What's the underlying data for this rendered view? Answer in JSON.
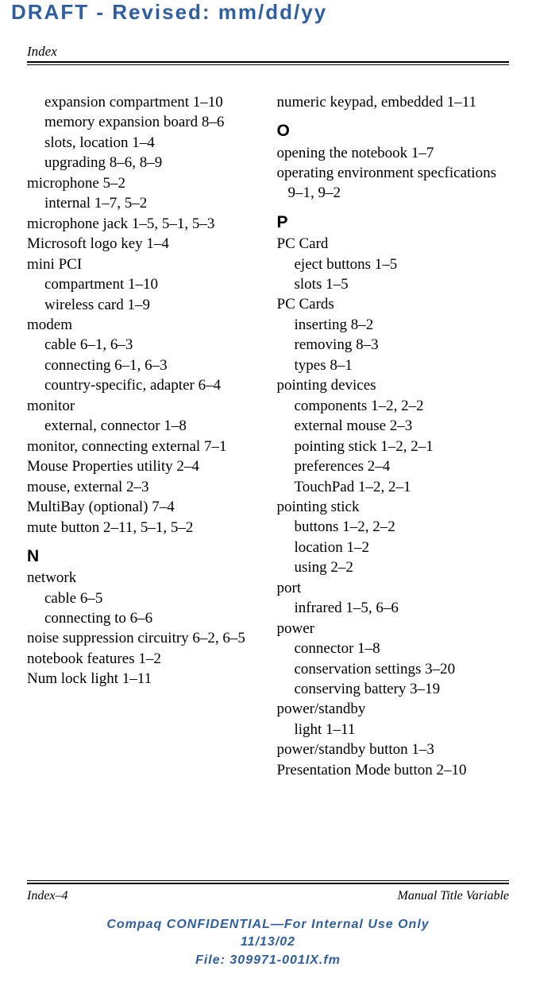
{
  "watermark": {
    "text": "DRAFT - Revised: mm/dd/yy",
    "color": "#2e5fa4"
  },
  "header": {
    "title": "Index"
  },
  "col_left": {
    "l1a": "expansion compartment 1–10",
    "l1b": "memory expansion board 8–6",
    "l1c": "slots, location 1–4",
    "l1d": "upgrading 8–6, 8–9",
    "l0a": "microphone 5–2",
    "l1e": "internal 1–7, 5–2",
    "l0b": "microphone jack 1–5, 5–1, 5–3",
    "l0c": "Microsoft logo key 1–4",
    "l0d": "mini PCI",
    "l1f": "compartment 1–10",
    "l1g": "wireless card 1–9",
    "l0e": "modem",
    "l1h": "cable 6–1, 6–3",
    "l1i": "connecting 6–1, 6–3",
    "l1j": "country-specific, adapter 6–4",
    "l0f": "monitor",
    "l1k": "external, connector 1–8",
    "l0g": "monitor, connecting external 7–1",
    "l0h": "Mouse Properties utility 2–4",
    "l0i": "mouse, external 2–3",
    "l0j": "MultiBay (optional) 7–4",
    "l0k": "mute button 2–11, 5–1, 5–2",
    "hdrN": "N",
    "l0l": "network",
    "l1l": "cable 6–5",
    "l1m": "connecting to 6–6",
    "l0m": "noise suppression circuitry 6–2, 6–5",
    "l0n": "notebook features 1–2",
    "l0o": "Num lock light 1–11"
  },
  "col_right": {
    "l0a": "numeric keypad, embedded 1–11",
    "hdrO": "O",
    "l0b": "opening the notebook 1–7",
    "l0c": "operating environment specfications 9–1, 9–2",
    "hdrP": "P",
    "l0d": "PC Card",
    "l1a": "eject buttons 1–5",
    "l1b": "slots 1–5",
    "l0e": "PC Cards",
    "l1c": "inserting 8–2",
    "l1d": "removing 8–3",
    "l1e": "types 8–1",
    "l0f": "pointing devices",
    "l1f": "components 1–2, 2–2",
    "l1g": "external mouse 2–3",
    "l1h": "pointing stick 1–2, 2–1",
    "l1i": "preferences 2–4",
    "l1j": "TouchPad 1–2, 2–1",
    "l0g": "pointing stick",
    "l1k": "buttons 1–2, 2–2",
    "l1l": "location 1–2",
    "l1m": "using 2–2",
    "l0h": "port",
    "l1n": "infrared 1–5, 6–6",
    "l0i": "power",
    "l1o": "connector 1–8",
    "l1p": "conservation settings 3–20",
    "l1q": "conserving battery 3–19",
    "l0j": "power/standby",
    "l1r": "light 1–11",
    "l0k": "power/standby button 1–3",
    "l0l": "Presentation Mode button 2–10"
  },
  "footer": {
    "page": "Index–4",
    "manual": "Manual Title Variable",
    "conf_line1": "Compaq CONFIDENTIAL—For Internal Use Only",
    "conf_line2": "11/13/02",
    "conf_line3": "File: 309971-001IX.fm",
    "conf_color": "#2e5fa4"
  }
}
